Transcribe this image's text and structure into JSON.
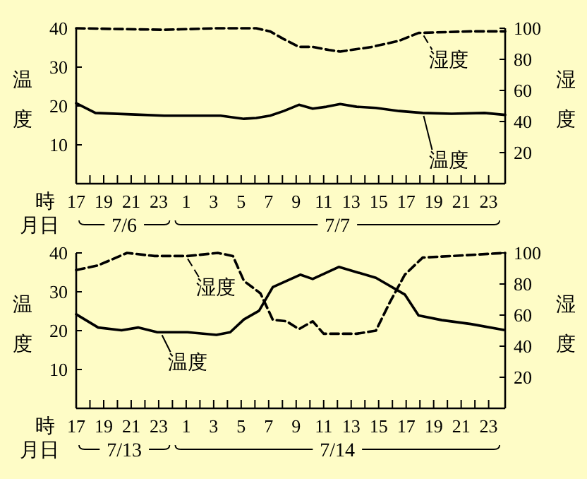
{
  "chart_data": [
    {
      "type": "line",
      "xlabel": "時",
      "ylabel": "温度",
      "y2label": "湿度",
      "annotations": [
        "月日",
        "7/6",
        "7/7"
      ],
      "xlim": [
        "--07-06T17:00",
        "--07-08T00:12"
      ],
      "xticks": [
        {
          "value": "--07-06T17:00",
          "label": "17"
        },
        {
          "value": "--07-06T18:00",
          "label": null
        },
        {
          "value": "--07-06T19:00",
          "label": "19"
        },
        {
          "value": "--07-06T20:00",
          "label": null
        },
        {
          "value": "--07-06T21:00",
          "label": "21"
        },
        {
          "value": "--07-06T22:00",
          "label": null
        },
        {
          "value": "--07-06T23:00",
          "label": "23"
        },
        {
          "value": "--07-07T00:00",
          "label": null
        },
        {
          "value": "--07-07T01:00",
          "label": "1"
        },
        {
          "value": "--07-07T02:00",
          "label": null
        },
        {
          "value": "--07-07T03:00",
          "label": "3"
        },
        {
          "value": "--07-07T04:00",
          "label": null
        },
        {
          "value": "--07-07T05:00",
          "label": "5"
        },
        {
          "value": "--07-07T06:00",
          "label": null
        },
        {
          "value": "--07-07T07:00",
          "label": "7"
        },
        {
          "value": "--07-07T08:00",
          "label": null
        },
        {
          "value": "--07-07T09:00",
          "label": "9"
        },
        {
          "value": "--07-07T10:00",
          "label": null
        },
        {
          "value": "--07-07T11:00",
          "label": "11"
        },
        {
          "value": "--07-07T12:00",
          "label": null
        },
        {
          "value": "--07-07T13:00",
          "label": "13"
        },
        {
          "value": "--07-07T14:00",
          "label": null
        },
        {
          "value": "--07-07T15:00",
          "label": "15"
        },
        {
          "value": "--07-07T16:00",
          "label": null
        },
        {
          "value": "--07-07T17:00",
          "label": "17"
        },
        {
          "value": "--07-07T18:00",
          "label": null
        },
        {
          "value": "--07-07T19:00",
          "label": "19"
        },
        {
          "value": "--07-07T20:00",
          "label": null
        },
        {
          "value": "--07-07T21:00",
          "label": "21"
        },
        {
          "value": "--07-07T22:00",
          "label": null
        },
        {
          "value": "--07-07T23:00",
          "label": "23"
        }
      ],
      "ylim": [
        0,
        40
      ],
      "yticks": [
        10,
        20,
        30,
        40
      ],
      "y2lim": [
        0,
        100
      ],
      "y2ticks": [
        20,
        40,
        60,
        80,
        100
      ],
      "grid": false,
      "legend": "right",
      "series": [
        {
          "name": "温度",
          "color": "#000000",
          "line_style": "solid",
          "x": [
            "--07-06T17:00",
            "--07-06T18:24",
            "--07-06T21:18",
            "--07-06T23:24",
            "--07-07T03:30",
            "--07-07T05:12",
            "--07-07T06:06",
            "--07-07T07:06",
            "--07-07T08:06",
            "--07-07T09:12",
            "--07-07T10:12",
            "--07-07T11:12",
            "--07-07T12:12",
            "--07-07T13:24",
            "--07-07T14:48",
            "--07-07T16:30",
            "--07-07T18:12",
            "--07-07T20:18",
            "--07-07T22:42",
            "--07-08T00:12"
          ],
          "values": [
            20.7,
            18.2,
            17.8,
            17.5,
            17.5,
            16.7,
            16.9,
            17.5,
            18.7,
            20.3,
            19.3,
            19.8,
            20.5,
            19.8,
            19.5,
            18.7,
            18.2,
            18,
            18.2,
            17.7
          ]
        },
        {
          "name": "湿度",
          "color": "#000000",
          "line_style": "dashed",
          "axis": "y2",
          "x": [
            "--07-06T17:00",
            "--07-06T23:24",
            "--07-07T03:12",
            "--07-07T05:12",
            "--07-07T06:06",
            "--07-07T07:06",
            "--07-07T08:06",
            "--07-07T09:12",
            "--07-07T10:12",
            "--07-07T11:24",
            "--07-07T12:12",
            "--07-07T14:30",
            "--07-07T16:30",
            "--07-07T17:54",
            "--07-07T21:42",
            "--07-08T00:12"
          ],
          "values": [
            100,
            99,
            100,
            100,
            100,
            98,
            93,
            88,
            88,
            86,
            85,
            88,
            92,
            97,
            98,
            98
          ]
        }
      ]
    },
    {
      "type": "line",
      "xlabel": "時",
      "ylabel": "温度",
      "y2label": "湿度",
      "annotations": [
        "月日",
        "7/13",
        "7/14"
      ],
      "xlim": [
        "--07-13T17:00",
        "--07-15T00:12"
      ],
      "xticks": [
        {
          "value": "--07-13T17:00",
          "label": "17"
        },
        {
          "value": "--07-13T18:00",
          "label": null
        },
        {
          "value": "--07-13T19:00",
          "label": "19"
        },
        {
          "value": "--07-13T20:00",
          "label": null
        },
        {
          "value": "--07-13T21:00",
          "label": "21"
        },
        {
          "value": "--07-13T22:00",
          "label": null
        },
        {
          "value": "--07-13T23:00",
          "label": "23"
        },
        {
          "value": "--07-14T00:00",
          "label": null
        },
        {
          "value": "--07-14T01:00",
          "label": "1"
        },
        {
          "value": "--07-14T02:00",
          "label": null
        },
        {
          "value": "--07-14T03:00",
          "label": "3"
        },
        {
          "value": "--07-14T04:00",
          "label": null
        },
        {
          "value": "--07-14T05:00",
          "label": "5"
        },
        {
          "value": "--07-14T06:00",
          "label": null
        },
        {
          "value": "--07-14T07:00",
          "label": "7"
        },
        {
          "value": "--07-14T08:00",
          "label": null
        },
        {
          "value": "--07-14T09:00",
          "label": "9"
        },
        {
          "value": "--07-14T10:00",
          "label": null
        },
        {
          "value": "--07-14T11:00",
          "label": "11"
        },
        {
          "value": "--07-14T12:00",
          "label": null
        },
        {
          "value": "--07-14T13:00",
          "label": "13"
        },
        {
          "value": "--07-14T14:00",
          "label": null
        },
        {
          "value": "--07-14T15:00",
          "label": "15"
        },
        {
          "value": "--07-14T16:00",
          "label": null
        },
        {
          "value": "--07-14T17:00",
          "label": "17"
        },
        {
          "value": "--07-14T18:00",
          "label": null
        },
        {
          "value": "--07-14T19:00",
          "label": "19"
        },
        {
          "value": "--07-14T20:00",
          "label": null
        },
        {
          "value": "--07-14T21:00",
          "label": "21"
        },
        {
          "value": "--07-14T22:00",
          "label": null
        },
        {
          "value": "--07-14T23:00",
          "label": "23"
        }
      ],
      "ylim": [
        0,
        40
      ],
      "yticks": [
        10,
        20,
        30,
        40
      ],
      "y2lim": [
        0,
        100
      ],
      "y2ticks": [
        20,
        40,
        60,
        80,
        100
      ],
      "grid": false,
      "legend": "left",
      "series": [
        {
          "name": "温度",
          "color": "#000000",
          "line_style": "solid",
          "x": [
            "--07-13T17:00",
            "--07-13T18:36",
            "--07-13T20:18",
            "--07-13T21:30",
            "--07-13T22:54",
            "--07-14T01:06",
            "--07-14T03:12",
            "--07-14T04:12",
            "--07-14T05:12",
            "--07-14T06:18",
            "--07-14T07:18",
            "--07-14T09:18",
            "--07-14T10:12",
            "--07-14T12:06",
            "--07-14T14:48",
            "--07-14T16:54",
            "--07-14T17:54",
            "--07-14T19:36",
            "--07-14T21:42",
            "--07-15T00:06"
          ],
          "values": [
            24.2,
            20.8,
            20.1,
            20.8,
            19.6,
            19.6,
            18.9,
            19.6,
            22.9,
            25.1,
            31.2,
            34.4,
            33.3,
            36.4,
            33.6,
            29.3,
            23.9,
            22.7,
            21.7,
            20.2
          ]
        },
        {
          "name": "湿度",
          "color": "#000000",
          "line_style": "dashed",
          "axis": "y2",
          "x": [
            "--07-13T17:00",
            "--07-13T18:36",
            "--07-13T20:42",
            "--07-13T22:42",
            "--07-14T01:06",
            "--07-14T03:18",
            "--07-14T04:24",
            "--07-14T05:12",
            "--07-14T06:24",
            "--07-14T07:18",
            "--07-14T08:18",
            "--07-14T09:12",
            "--07-14T10:12",
            "--07-14T11:00",
            "--07-14T13:24",
            "--07-14T14:48",
            "--07-14T15:48",
            "--07-14T16:54",
            "--07-14T18:12",
            "--07-14T20:18",
            "--07-15T00:12"
          ],
          "values": [
            89,
            92,
            100,
            98,
            98,
            100,
            98,
            82,
            74,
            57,
            56,
            51,
            56,
            48,
            48,
            50,
            68,
            86,
            97,
            98,
            100
          ]
        }
      ]
    }
  ]
}
